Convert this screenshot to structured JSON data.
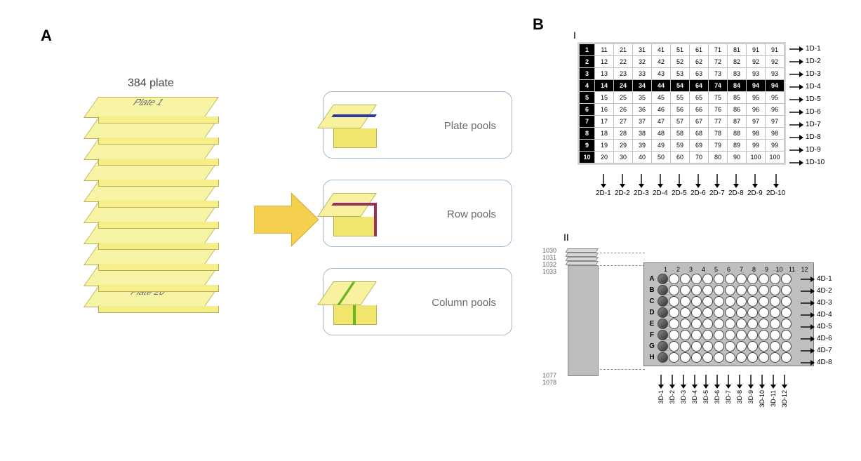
{
  "labels": {
    "A": "A",
    "B": "B",
    "sub_i": "I",
    "sub_ii": "II"
  },
  "panelA": {
    "stack_title": "384 plate",
    "plates": [
      "Plate 1",
      "",
      "",
      "",
      "",
      "",
      "",
      "",
      "",
      "Plate 20"
    ],
    "plate_colors": {
      "top": "#f8f4a6",
      "front": "#f6ee88",
      "edge": "#b8b057"
    },
    "arrow_color": "#f5d04e",
    "cards": [
      {
        "label": "Plate pools",
        "stripe_color": "#2e3a9e",
        "mode": "h"
      },
      {
        "label": "Row pools",
        "stripe_color": "#9e2e5a",
        "mode": "side"
      },
      {
        "label": "Column pools",
        "stripe_color": "#6ab61d",
        "mode": "v"
      }
    ]
  },
  "panelB": {
    "gridI": {
      "rows": 10,
      "cols": 10,
      "highlight_row": 4,
      "row_labels": [
        "1D-1",
        "1D-2",
        "1D-3",
        "1D-4",
        "1D-5",
        "1D-6",
        "1D-7",
        "1D-8",
        "1D-9",
        "1D-10"
      ],
      "col_labels": [
        "2D-1",
        "2D-2",
        "2D-3",
        "2D-4",
        "2D-5",
        "2D-6",
        "2D-7",
        "2D-8",
        "2D-9",
        "2D-10"
      ]
    },
    "stack_numbers": [
      "1030",
      "1031",
      "1032",
      "1033",
      "1077",
      "1078"
    ],
    "plateII": {
      "rows": [
        "A",
        "B",
        "C",
        "D",
        "E",
        "F",
        "G",
        "H"
      ],
      "cols": [
        "1",
        "2",
        "3",
        "4",
        "5",
        "6",
        "7",
        "8",
        "9",
        "10",
        "11",
        "12"
      ],
      "row_labels": [
        "4D-1",
        "4D-2",
        "4D-3",
        "4D-4",
        "4D-5",
        "4D-6",
        "4D-7",
        "4D-8"
      ],
      "col_labels": [
        "3D-1",
        "3D-2",
        "3D-3",
        "3D-4",
        "3D-5",
        "3D-6",
        "3D-7",
        "3D-8",
        "3D-9",
        "3D-10",
        "3D-11",
        "3D-12"
      ]
    },
    "colors": {
      "grid_bg": "#d7d7d7",
      "cell_border": "#c0c0c0",
      "hot": "#000000",
      "plate_bg": "#bfbfbf",
      "well_empty": "#ffffff",
      "well_fill": "#666666"
    }
  }
}
